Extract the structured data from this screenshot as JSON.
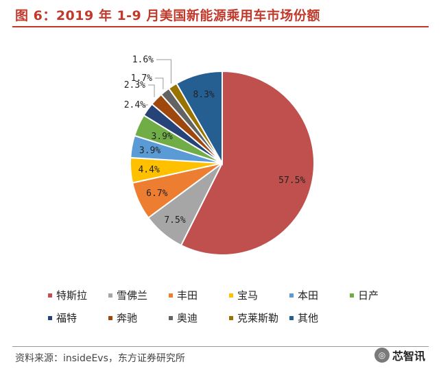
{
  "header": {
    "title": "图 6：2019 年 1-9 月美国新能源乘用车市场份额"
  },
  "chart_data": {
    "type": "pie",
    "title": "",
    "start": "12 o'clock",
    "direction": "clockwise",
    "unit": "%",
    "slices": [
      {
        "name": "特斯拉",
        "value": 57.5,
        "label": "57.5%",
        "color": "#c0504d"
      },
      {
        "name": "雪佛兰",
        "value": 7.5,
        "label": "7.5%",
        "color": "#a6a6a6"
      },
      {
        "name": "丰田",
        "value": 6.7,
        "label": "6.7%",
        "color": "#ed7d31"
      },
      {
        "name": "宝马",
        "value": 4.4,
        "label": "4.4%",
        "color": "#ffc000"
      },
      {
        "name": "本田",
        "value": 3.9,
        "label": "3.9%",
        "color": "#5b9bd5"
      },
      {
        "name": "日产",
        "value": 3.9,
        "label": "3.9%",
        "color": "#70ad47"
      },
      {
        "name": "福特",
        "value": 2.4,
        "label": "2.4%",
        "color": "#264478"
      },
      {
        "name": "奔驰",
        "value": 2.3,
        "label": "2.3%",
        "color": "#9e480e"
      },
      {
        "name": "奥迪",
        "value": 1.7,
        "label": "1.7%",
        "color": "#636363"
      },
      {
        "name": "克莱斯勒",
        "value": 1.6,
        "label": "1.6%",
        "color": "#997300"
      },
      {
        "name": "其他",
        "value": 8.3,
        "label": "8.3%",
        "color": "#255e91"
      }
    ]
  },
  "footer": {
    "source": "资料来源：insideEvs，东方证券研究所",
    "brand": "芯智讯",
    "brand_icon": "wechat-icon"
  }
}
